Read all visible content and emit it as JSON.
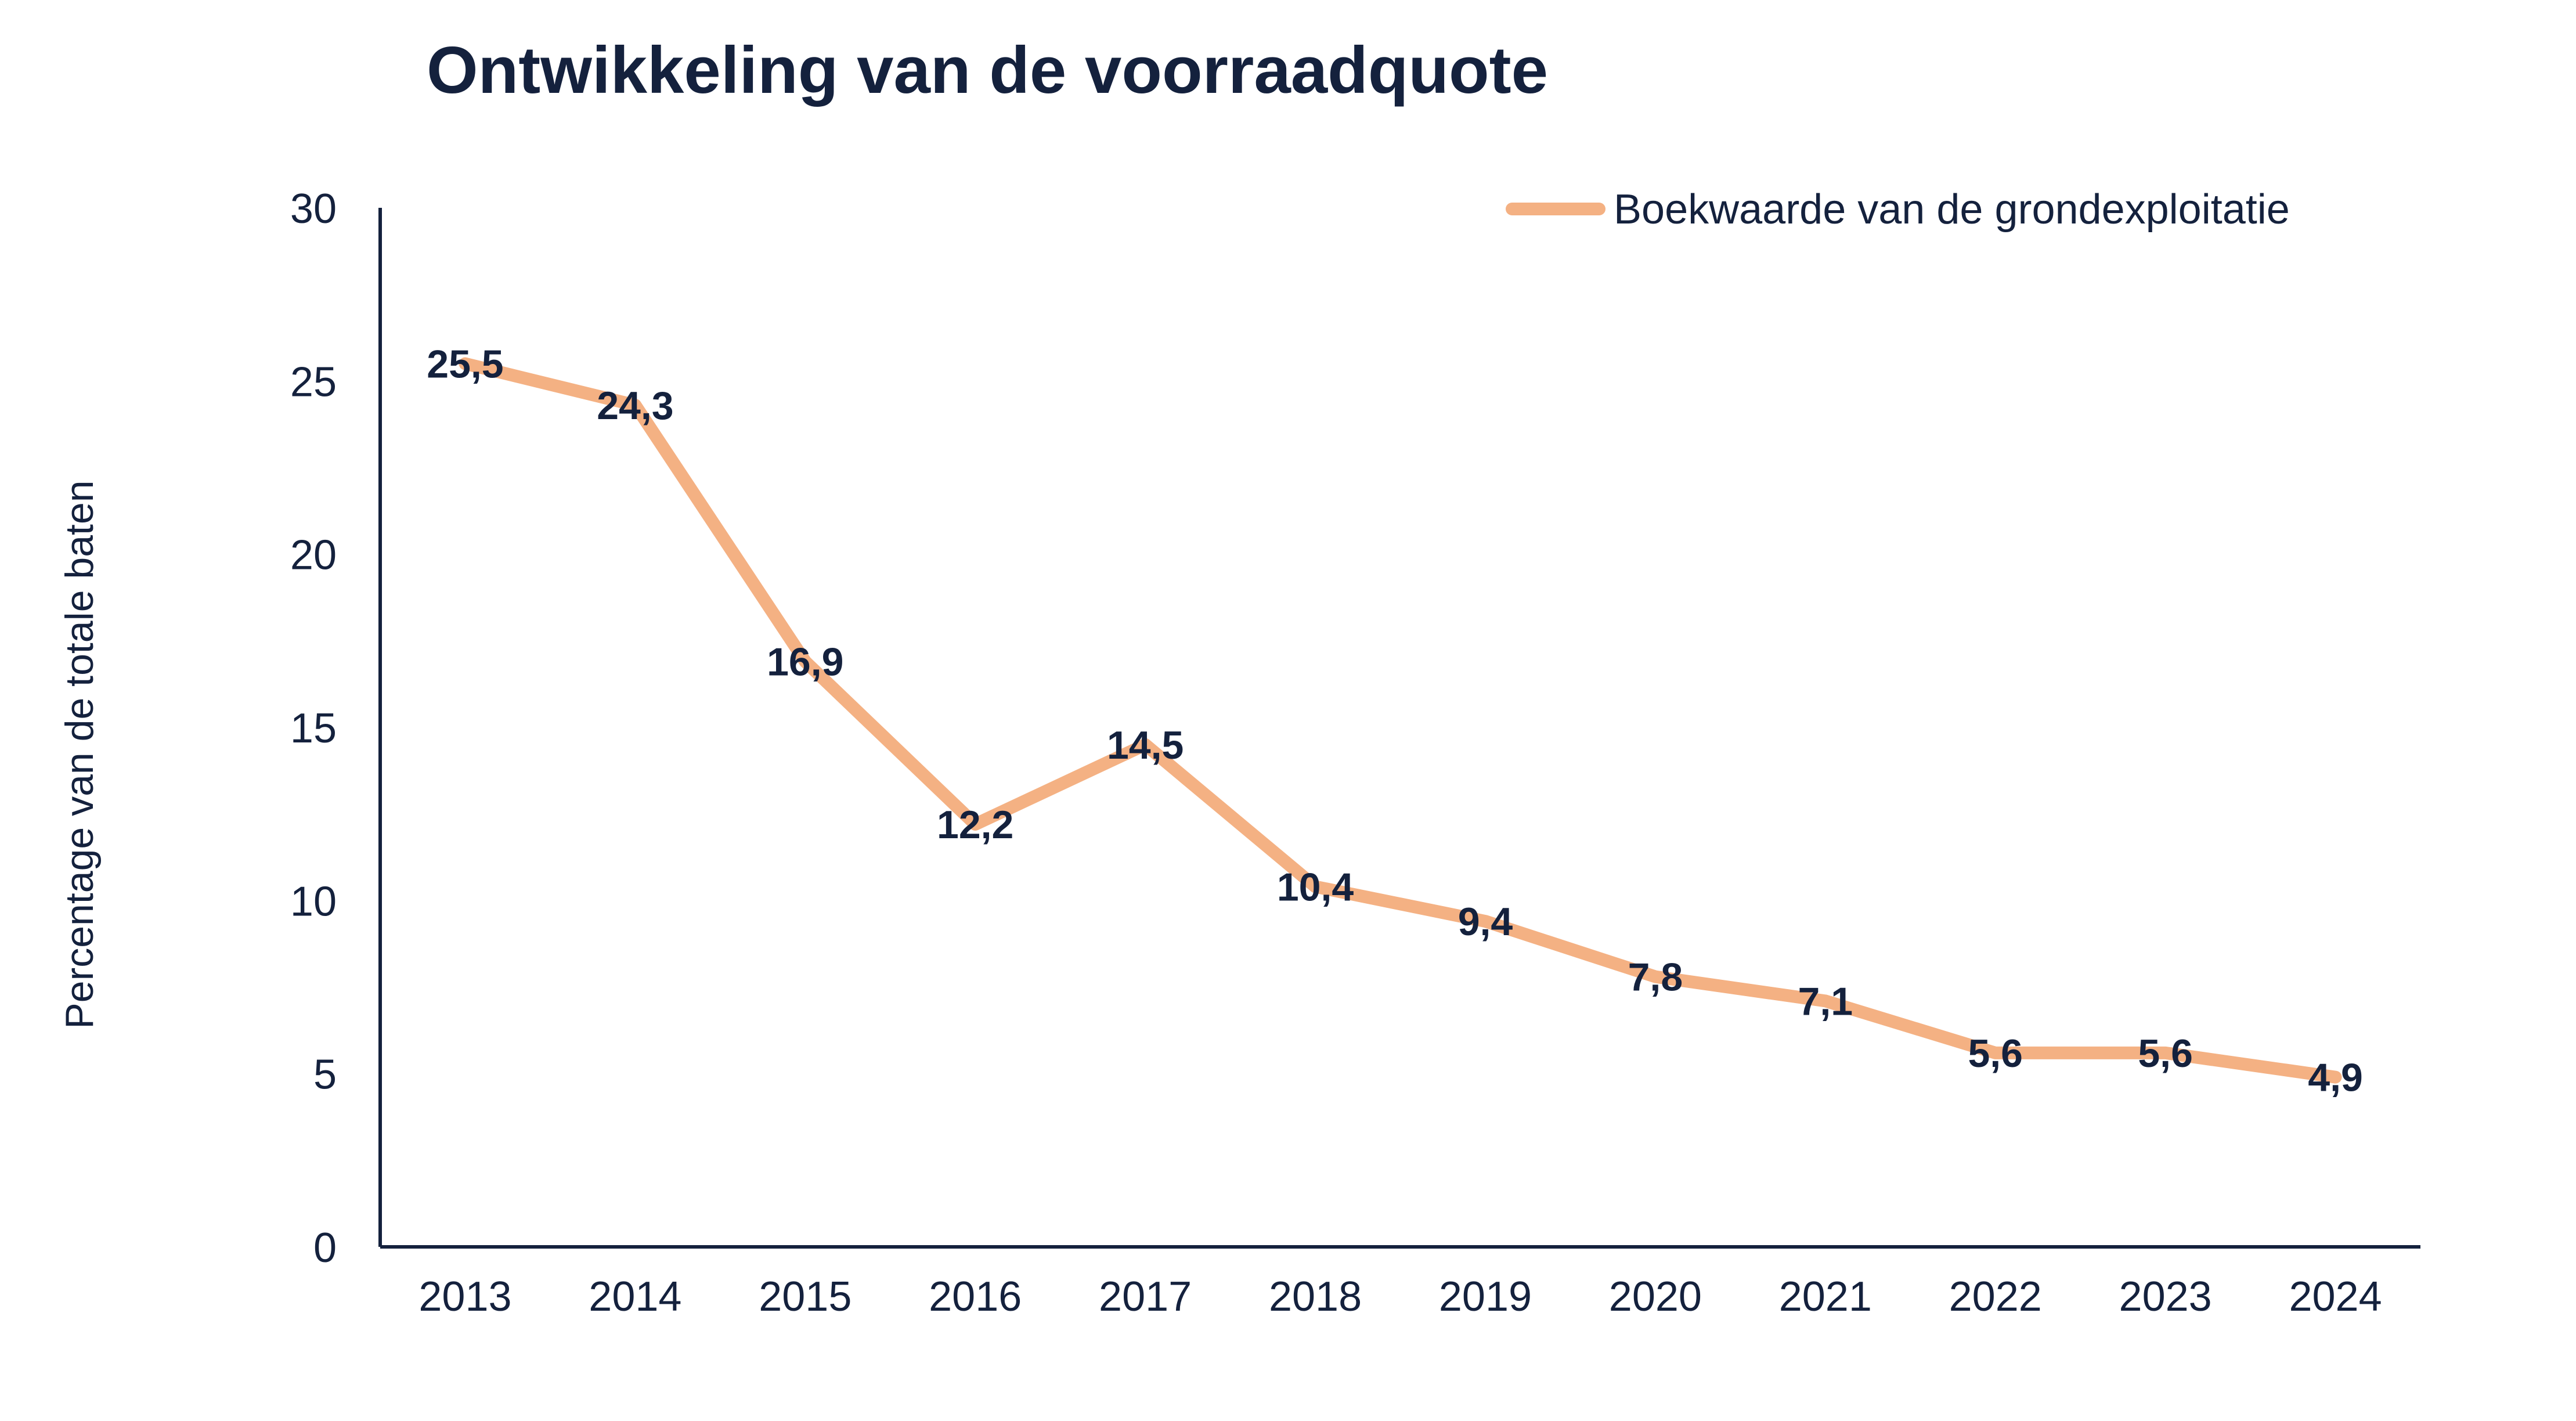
{
  "colors": {
    "text": "#14213d",
    "series": "#f4b183",
    "axis": "#14213d",
    "background": "#ffffff"
  },
  "chart_data": {
    "type": "line",
    "title": "Ontwikkeling van de voorraadquote",
    "xlabel": "",
    "ylabel": "Percentage van de totale baten",
    "categories": [
      "2013",
      "2014",
      "2015",
      "2016",
      "2017",
      "2018",
      "2019",
      "2020",
      "2021",
      "2022",
      "2023",
      "2024"
    ],
    "ylim": [
      0,
      30
    ],
    "yticks": [
      0,
      5,
      10,
      15,
      20,
      25,
      30
    ],
    "grid": false,
    "legend_position": "top-right",
    "series": [
      {
        "name": "Boekwaarde van de grondexploitatie",
        "values": [
          25.5,
          24.3,
          16.9,
          12.2,
          14.5,
          10.4,
          9.4,
          7.8,
          7.1,
          5.6,
          5.6,
          4.9
        ],
        "labels": [
          "25,5",
          "24,3",
          "16,9",
          "12,2",
          "14,5",
          "10,4",
          "9,4",
          "7,8",
          "7,1",
          "5,6",
          "5,6",
          "4,9"
        ]
      }
    ]
  }
}
